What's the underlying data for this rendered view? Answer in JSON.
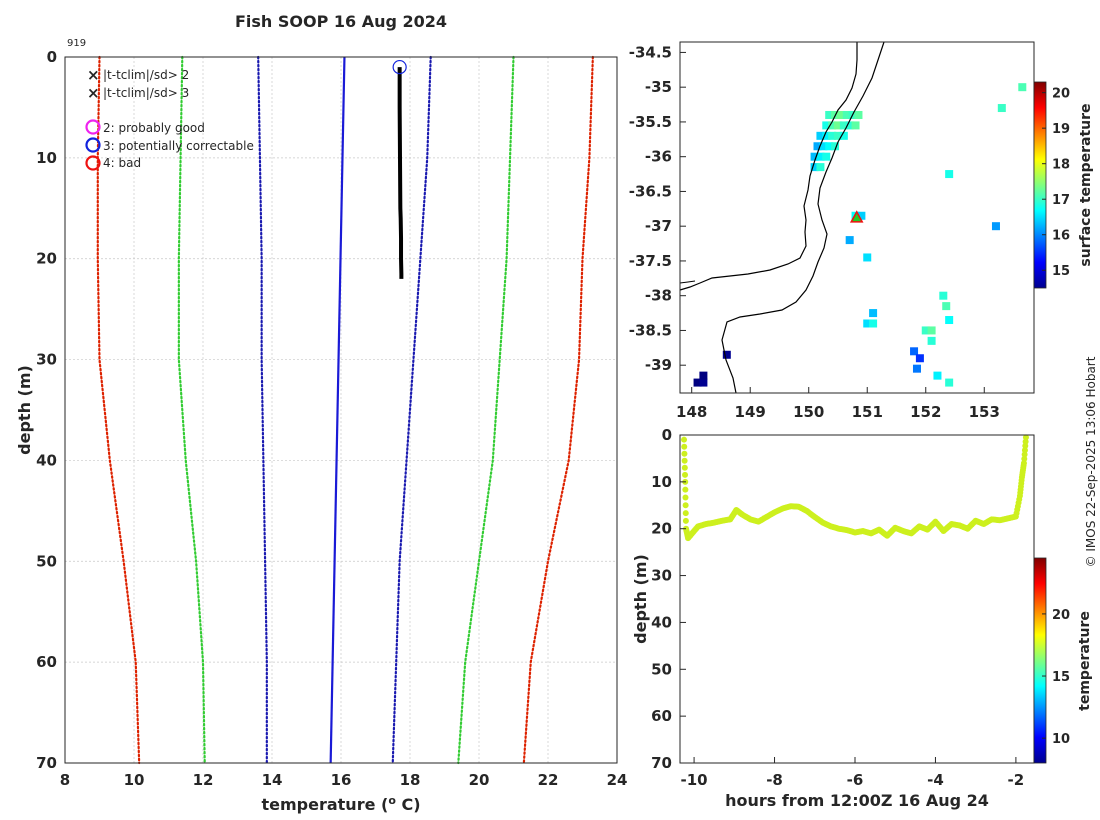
{
  "title": "Fish SOOP 16 Aug 2024",
  "id_label": "919",
  "copyright": "© IMOS 22-Sep-2025 13:06 Hobart",
  "chart_data": [
    {
      "type": "line",
      "name": "temperature-profile",
      "xlabel": "temperature (°C)",
      "xlabel_prefix": "temperature (",
      "xlabel_unit_sup": "o",
      "xlabel_suffix": " C)",
      "ylabel": "depth (m)",
      "xlim": [
        8,
        24
      ],
      "ylim": [
        0,
        70
      ],
      "xticks": [
        8,
        10,
        12,
        14,
        16,
        18,
        20,
        22,
        24
      ],
      "yticks": [
        0,
        10,
        20,
        30,
        40,
        50,
        60,
        70
      ],
      "legend": {
        "markers": [
          {
            "symbol": "×",
            "color": "#22dd22",
            "label": "|t-tclim|/sd> 2"
          },
          {
            "symbol": "×",
            "color": "#ee1111",
            "label": "|t-tclim|/sd> 3"
          }
        ],
        "circles": [
          {
            "color": "#ee22ee",
            "label": "2: probably good"
          },
          {
            "color": "#1122dd",
            "label": "3: potentially correctable"
          },
          {
            "color": "#ee1111",
            "label": "4: bad"
          }
        ]
      },
      "series": [
        {
          "name": "climatology mean",
          "color": "#1a1ad6",
          "style": "solid",
          "x": [
            16.1,
            15.7
          ],
          "y": [
            0,
            70
          ]
        },
        {
          "name": "+1 sd",
          "color": "#1a1ab0",
          "style": "dotted",
          "x": [
            18.6,
            18.5,
            18.3,
            18.1,
            17.9,
            17.7,
            17.6,
            17.5
          ],
          "y": [
            0,
            10,
            20,
            30,
            40,
            50,
            60,
            70
          ]
        },
        {
          "name": "-1 sd",
          "color": "#1a1ab0",
          "style": "dotted",
          "x": [
            13.6,
            13.65,
            13.7,
            13.7,
            13.75,
            13.8,
            13.85,
            13.85
          ],
          "y": [
            0,
            10,
            20,
            30,
            40,
            50,
            60,
            70
          ]
        },
        {
          "name": "+2 sd",
          "color": "#33cc33",
          "style": "dotted",
          "x": [
            21.0,
            20.9,
            20.8,
            20.6,
            20.4,
            20.0,
            19.6,
            19.4
          ],
          "y": [
            0,
            10,
            20,
            30,
            40,
            50,
            60,
            70
          ]
        },
        {
          "name": "-2 sd",
          "color": "#33cc33",
          "style": "dotted",
          "x": [
            11.4,
            11.35,
            11.3,
            11.3,
            11.5,
            11.8,
            12.0,
            12.05
          ],
          "y": [
            0,
            10,
            20,
            30,
            40,
            50,
            60,
            70
          ]
        },
        {
          "name": "+3 sd",
          "color": "#dd2200",
          "style": "dotted",
          "x": [
            23.3,
            23.2,
            23.0,
            22.9,
            22.6,
            22.0,
            21.5,
            21.3
          ],
          "y": [
            0,
            10,
            20,
            30,
            40,
            50,
            60,
            70
          ]
        },
        {
          "name": "-3 sd",
          "color": "#dd2200",
          "style": "dotted",
          "x": [
            9.0,
            8.95,
            8.95,
            9.0,
            9.3,
            9.7,
            10.05,
            10.15
          ],
          "y": [
            0,
            10,
            20,
            30,
            40,
            50,
            60,
            70
          ]
        },
        {
          "name": "observed",
          "color": "#000000",
          "style": "solid",
          "width": 4,
          "x": [
            17.7,
            17.7,
            17.71,
            17.72,
            17.73,
            17.74,
            17.74,
            17.75,
            17.75
          ],
          "y": [
            1,
            5,
            10,
            15,
            16,
            18,
            20,
            21.5,
            22
          ]
        }
      ],
      "flag_circle": {
        "x": 17.7,
        "y": 1,
        "color": "#1122dd"
      }
    },
    {
      "type": "heatmap",
      "name": "map",
      "xlim": [
        147.8,
        153.85
      ],
      "ylim": [
        -39.4,
        -34.35
      ],
      "xticks": [
        148,
        149,
        150,
        151,
        152,
        153
      ],
      "yticks": [
        -34.5,
        -35,
        -35.5,
        -36,
        -36.5,
        -37,
        -37.5,
        -38,
        -38.5,
        -39
      ],
      "colorbar": {
        "label": "surface temperature",
        "min": 14.5,
        "max": 20.3,
        "ticks": [
          15,
          16,
          17,
          18,
          19,
          20
        ]
      },
      "marker": {
        "lon": 150.82,
        "lat": -36.88,
        "symbol": "triangle"
      },
      "pixels": [
        {
          "lon": 150.35,
          "lat": -35.4,
          "v": 17
        },
        {
          "lon": 150.45,
          "lat": -35.4,
          "v": 17.2
        },
        {
          "lon": 150.55,
          "lat": -35.4,
          "v": 17.3
        },
        {
          "lon": 150.65,
          "lat": -35.4,
          "v": 17.1
        },
        {
          "lon": 150.75,
          "lat": -35.4,
          "v": 17
        },
        {
          "lon": 150.85,
          "lat": -35.4,
          "v": 17.2
        },
        {
          "lon": 150.3,
          "lat": -35.55,
          "v": 16.8
        },
        {
          "lon": 150.4,
          "lat": -35.55,
          "v": 17.1
        },
        {
          "lon": 150.5,
          "lat": -35.55,
          "v": 17.3
        },
        {
          "lon": 150.6,
          "lat": -35.55,
          "v": 17
        },
        {
          "lon": 150.7,
          "lat": -35.55,
          "v": 16.9
        },
        {
          "lon": 150.8,
          "lat": -35.55,
          "v": 17.2
        },
        {
          "lon": 150.2,
          "lat": -35.7,
          "v": 16.4
        },
        {
          "lon": 150.3,
          "lat": -35.7,
          "v": 16.6
        },
        {
          "lon": 150.4,
          "lat": -35.7,
          "v": 16.9
        },
        {
          "lon": 150.5,
          "lat": -35.7,
          "v": 17
        },
        {
          "lon": 150.6,
          "lat": -35.7,
          "v": 16.8
        },
        {
          "lon": 150.15,
          "lat": -35.85,
          "v": 16.2
        },
        {
          "lon": 150.25,
          "lat": -35.85,
          "v": 16.5
        },
        {
          "lon": 150.35,
          "lat": -35.85,
          "v": 16.7
        },
        {
          "lon": 150.45,
          "lat": -35.85,
          "v": 16.9
        },
        {
          "lon": 150.1,
          "lat": -36.0,
          "v": 16.3
        },
        {
          "lon": 150.2,
          "lat": -36.0,
          "v": 16.6
        },
        {
          "lon": 150.3,
          "lat": -36.0,
          "v": 16.8
        },
        {
          "lon": 150.1,
          "lat": -36.15,
          "v": 16.4
        },
        {
          "lon": 150.2,
          "lat": -36.15,
          "v": 16.9
        },
        {
          "lon": 150.8,
          "lat": -36.85,
          "v": 16.7
        },
        {
          "lon": 150.9,
          "lat": -36.85,
          "v": 16.4
        },
        {
          "lon": 150.7,
          "lat": -37.2,
          "v": 16.2
        },
        {
          "lon": 151.0,
          "lat": -37.45,
          "v": 16.5
        },
        {
          "lon": 152.4,
          "lat": -36.25,
          "v": 16.8
        },
        {
          "lon": 153.65,
          "lat": -35.0,
          "v": 17.1
        },
        {
          "lon": 153.3,
          "lat": -35.3,
          "v": 17
        },
        {
          "lon": 153.2,
          "lat": -37.0,
          "v": 16.1
        },
        {
          "lon": 151.0,
          "lat": -38.4,
          "v": 16.5
        },
        {
          "lon": 151.1,
          "lat": -38.4,
          "v": 16.8
        },
        {
          "lon": 151.1,
          "lat": -38.25,
          "v": 16.3
        },
        {
          "lon": 152.3,
          "lat": -38.0,
          "v": 16.9
        },
        {
          "lon": 152.35,
          "lat": -38.15,
          "v": 17.1
        },
        {
          "lon": 152.4,
          "lat": -38.35,
          "v": 16.7
        },
        {
          "lon": 152.0,
          "lat": -38.5,
          "v": 17
        },
        {
          "lon": 152.1,
          "lat": -38.5,
          "v": 17.2
        },
        {
          "lon": 152.1,
          "lat": -38.65,
          "v": 16.9
        },
        {
          "lon": 151.8,
          "lat": -38.8,
          "v": 15.8
        },
        {
          "lon": 151.9,
          "lat": -38.9,
          "v": 15.5
        },
        {
          "lon": 151.85,
          "lat": -39.05,
          "v": 15.9
        },
        {
          "lon": 152.2,
          "lat": -39.15,
          "v": 16.6
        },
        {
          "lon": 152.4,
          "lat": -39.25,
          "v": 16.9
        },
        {
          "lon": 148.1,
          "lat": -39.25,
          "v": 14.5
        },
        {
          "lon": 148.2,
          "lat": -39.25,
          "v": 14.6
        },
        {
          "lon": 148.2,
          "lat": -39.15,
          "v": 14.5
        },
        {
          "lon": 148.6,
          "lat": -38.85,
          "v": 14.6
        }
      ]
    },
    {
      "type": "scatter",
      "name": "depth-timeseries",
      "xlabel": "hours from 12:00Z 16 Aug 24",
      "ylabel": "depth (m)",
      "xlim": [
        -10.35,
        -1.55
      ],
      "ylim": [
        0,
        70
      ],
      "xticks": [
        -10,
        -8,
        -6,
        -4,
        -2
      ],
      "yticks": [
        0,
        10,
        20,
        30,
        40,
        50,
        60,
        70
      ],
      "colorbar": {
        "label": "temperature",
        "min": 8,
        "max": 24.5,
        "ticks": [
          10,
          15,
          20
        ]
      },
      "point_color": "#cdf01e",
      "x": [
        -10.25,
        -10.22,
        -10.2,
        -10.15,
        -10.05,
        -9.9,
        -9.7,
        -9.5,
        -9.3,
        -9.1,
        -8.95,
        -8.8,
        -8.6,
        -8.4,
        -8.2,
        -8.0,
        -7.8,
        -7.6,
        -7.4,
        -7.2,
        -7.0,
        -6.8,
        -6.6,
        -6.4,
        -6.2,
        -6.0,
        -5.8,
        -5.6,
        -5.4,
        -5.2,
        -5.0,
        -4.8,
        -4.6,
        -4.4,
        -4.2,
        -4.0,
        -3.8,
        -3.6,
        -3.4,
        -3.2,
        -3.0,
        -2.8,
        -2.6,
        -2.4,
        -2.2,
        -2.0,
        -1.9,
        -1.85,
        -1.8,
        -1.75
      ],
      "y": [
        1,
        10,
        20,
        22,
        21,
        19.5,
        19,
        18.7,
        18.3,
        18,
        16,
        17,
        18,
        18.5,
        17.5,
        16.5,
        15.7,
        15.2,
        15.3,
        16.2,
        17.5,
        18.7,
        19.5,
        20,
        20.3,
        20.8,
        20.5,
        21,
        20.2,
        21.5,
        19.8,
        20.5,
        21,
        19.5,
        20.2,
        18.5,
        20.5,
        19,
        19.3,
        20,
        18.3,
        19,
        18,
        18.2,
        17.8,
        17.4,
        13,
        9,
        6,
        0.5
      ]
    }
  ]
}
